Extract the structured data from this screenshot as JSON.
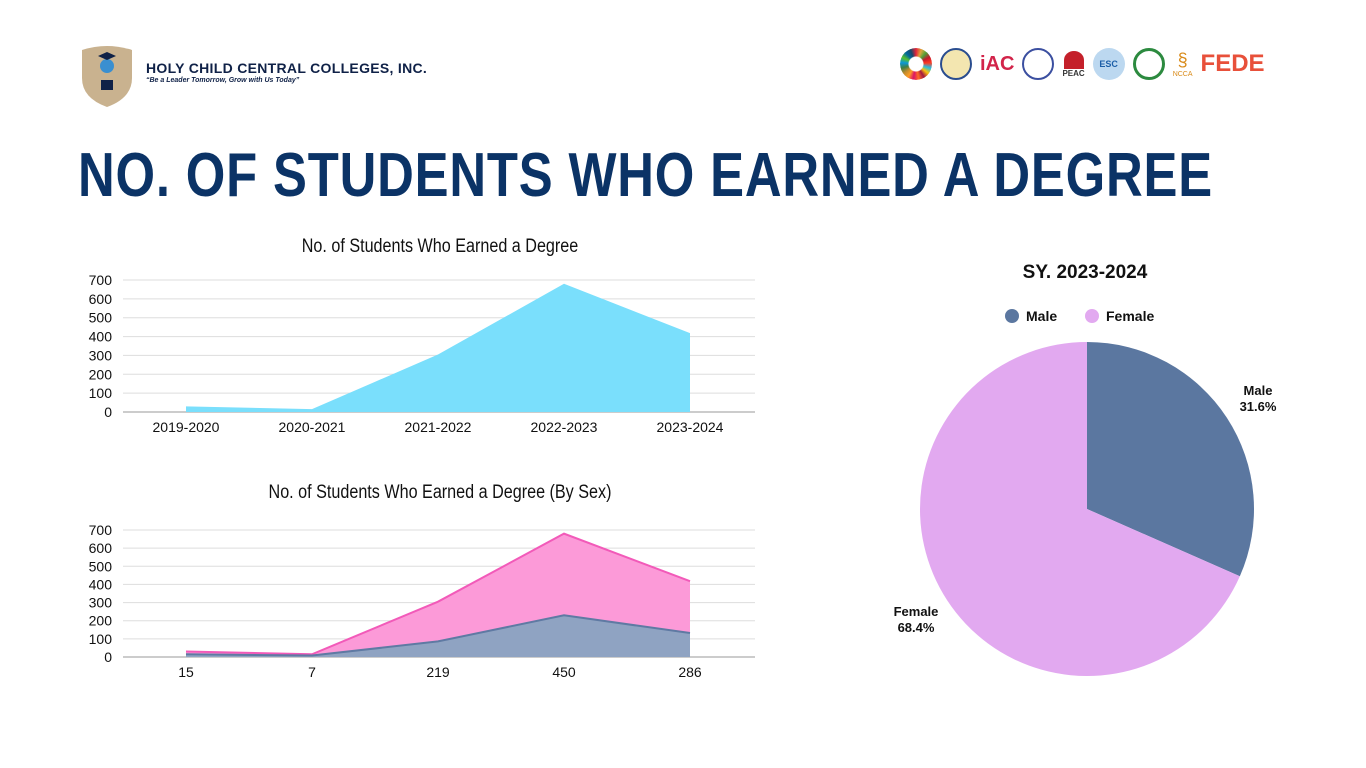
{
  "header": {
    "school_name": "HOLY CHILD CENTRAL COLLEGES, INC.",
    "tagline": "“Be a Leader Tomorrow, Grow with Us Today”",
    "partner_logos": [
      "sdg-icon",
      "seal-icon",
      "iac-logo",
      "deped-seal-icon",
      "peac-logo",
      "esc-logo",
      "green-seal-icon",
      "ncca-logo",
      "fede-logo"
    ],
    "partner_labels": {
      "peac": "PEAC",
      "esc": "ESC",
      "ncca": "NCCA",
      "fede": "FEDE"
    }
  },
  "page_title": "NO. OF STUDENTS WHO EARNED A DEGREE",
  "chart_data": [
    {
      "type": "area",
      "title": "No. of Students Who Earned a Degree",
      "categories": [
        "2019-2020",
        "2020-2021",
        "2021-2022",
        "2022-2023",
        "2023-2024"
      ],
      "values": [
        30,
        15,
        305,
        680,
        418
      ],
      "ylim": [
        0,
        700
      ],
      "yticks": [
        0,
        100,
        200,
        300,
        400,
        500,
        600,
        700
      ],
      "grid": true,
      "color": "#7adffc"
    },
    {
      "type": "area",
      "stacked": true,
      "title": "No. of Students Who Earned a Degree (By Sex)",
      "categories": [
        "15",
        "7",
        "219",
        "450",
        "286"
      ],
      "series": [
        {
          "values": [
            15,
            8,
            86,
            230,
            132
          ],
          "color": "#8fa3c2",
          "line": "#5f7aa3"
        },
        {
          "values": [
            15,
            7,
            219,
            450,
            286
          ],
          "color": "#fc9ad8",
          "line": "#f25ab9"
        }
      ],
      "ylim": [
        0,
        700
      ],
      "yticks": [
        0,
        100,
        200,
        300,
        400,
        500,
        600,
        700
      ],
      "grid": true
    },
    {
      "type": "pie",
      "title": "SY. 2023-2024",
      "legend": "top",
      "labels": [
        "Male",
        "Female"
      ],
      "values": [
        31.6,
        68.4
      ],
      "value_labels": [
        "31.6%",
        "68.4%"
      ],
      "colors": [
        "#5b77a0",
        "#e2a9f0"
      ]
    }
  ]
}
